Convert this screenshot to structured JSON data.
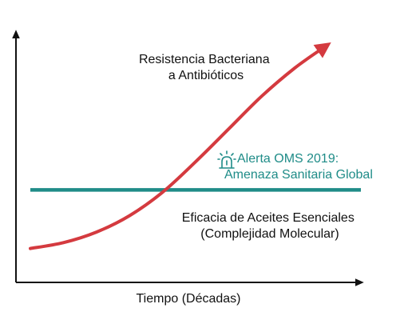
{
  "chart_data": {
    "type": "line",
    "title": "",
    "xlabel": "Tiempo (Décadas)",
    "ylabel": "",
    "xlim": [
      0,
      10
    ],
    "ylim": [
      0,
      10
    ],
    "grid": false,
    "series": [
      {
        "name": "Resistencia Bacteriana a Antibióticos",
        "label_lines": [
          "Resistencia Bacteriana",
          "a Antibióticos"
        ],
        "color": "#d43a3f",
        "trend": "rising-exponential",
        "arrow_head": true,
        "x": [
          0,
          1,
          2,
          3,
          4,
          5,
          6,
          7,
          8,
          8.9
        ],
        "y": [
          0.9,
          1.15,
          1.6,
          2.3,
          3.3,
          4.6,
          6.0,
          7.4,
          8.6,
          9.5
        ]
      },
      {
        "name": "Eficacia de Aceites Esenciales (Complejidad Molecular)",
        "label_lines": [
          "Eficacia de Aceites Esenciales",
          "(Complejidad Molecular)"
        ],
        "color": "#1f8c88",
        "trend": "constant",
        "arrow_head": false,
        "x": [
          0,
          10
        ],
        "y": [
          3.4,
          3.4
        ]
      }
    ],
    "annotations": [
      {
        "icon": "alert-siren-icon",
        "lines": [
          "Alerta OMS 2019:",
          "Amenaza Sanitaria Global"
        ],
        "color": "#1f8c88"
      }
    ],
    "colors": {
      "axis": "#111111",
      "text": "#111111",
      "resistance": "#d43a3f",
      "efficacy": "#1f8c88",
      "alert": "#1f8c88"
    }
  }
}
